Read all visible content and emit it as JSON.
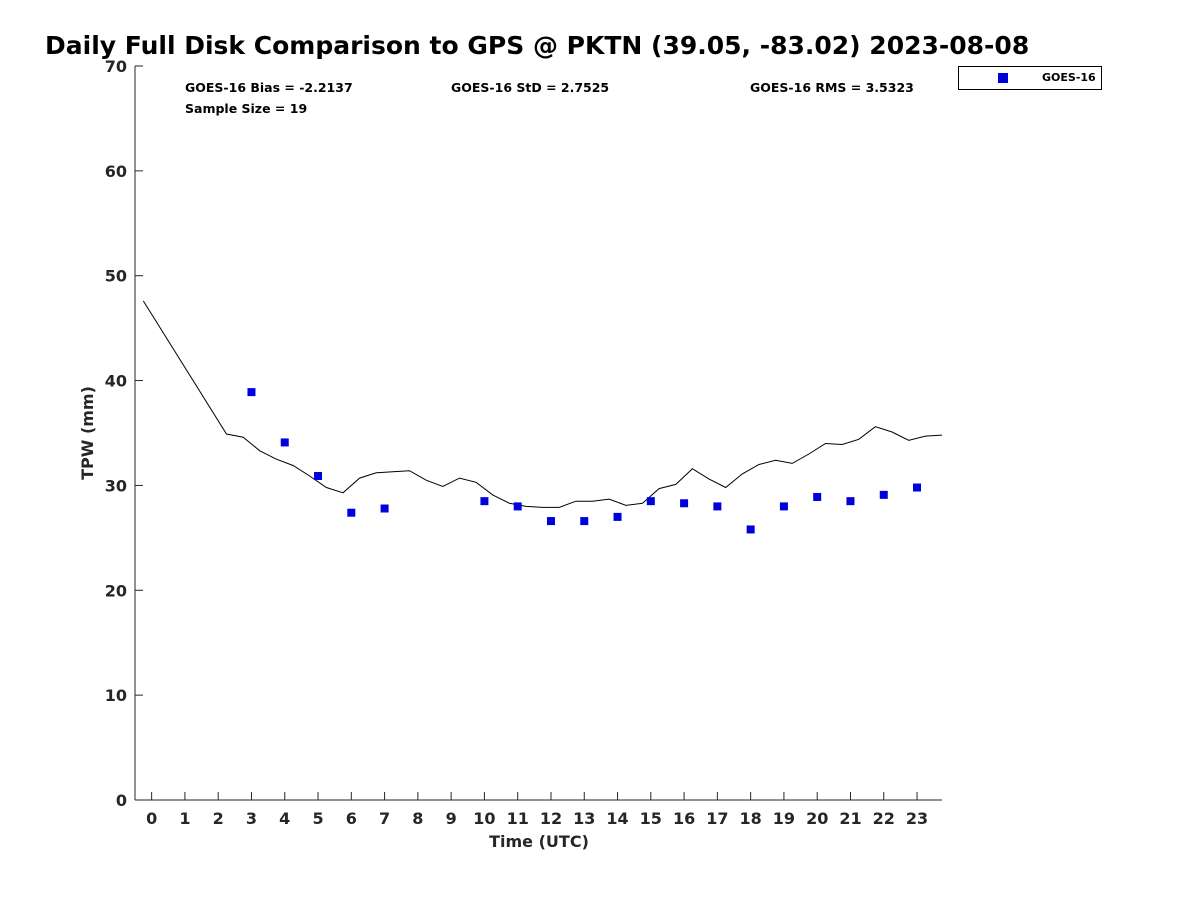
{
  "chart_data": {
    "type": "scatter",
    "title": "Daily Full Disk Comparison to GPS @ PKTN (39.05, -83.02) 2023-08-08",
    "xlabel": "Time (UTC)",
    "ylabel": "TPW (mm)",
    "xlim": [
      -0.5,
      23.75
    ],
    "ylim": [
      0,
      70
    ],
    "x_ticks": [
      0,
      1,
      2,
      3,
      4,
      5,
      6,
      7,
      8,
      9,
      10,
      11,
      12,
      13,
      14,
      15,
      16,
      17,
      18,
      19,
      20,
      21,
      22,
      23
    ],
    "x_tick_labels": [
      "0",
      "1",
      "2",
      "3",
      "4",
      "5",
      "6",
      "7",
      "8",
      "9",
      "10",
      "11",
      "12",
      "13",
      "14",
      "15",
      "16",
      "17",
      "18",
      "19",
      "20",
      "21",
      "22",
      "23"
    ],
    "y_ticks": [
      0,
      10,
      20,
      30,
      40,
      50,
      60,
      70
    ],
    "y_tick_labels": [
      "0",
      "10",
      "20",
      "30",
      "40",
      "50",
      "60",
      "70"
    ],
    "grid": false,
    "legend_position": "top-right-outside",
    "stats": {
      "bias": "GOES-16 Bias = -2.2137",
      "std": "GOES-16 StD = 2.7525",
      "rms": "GOES-16 RMS = 3.5323",
      "sample_size": "Sample Size = 19"
    },
    "series": [
      {
        "name": "GOES-16",
        "kind": "scatter",
        "marker": "square",
        "color": "#0000dd",
        "x": [
          3,
          4,
          5,
          6,
          7,
          10,
          11,
          12,
          13,
          14,
          15,
          16,
          17,
          18,
          19,
          20,
          21,
          22,
          23
        ],
        "y": [
          38.9,
          34.1,
          30.9,
          27.4,
          27.8,
          28.5,
          28.0,
          26.6,
          26.6,
          27.0,
          28.5,
          28.3,
          28.0,
          25.8,
          28.0,
          28.9,
          28.5,
          29.1,
          29.8
        ]
      },
      {
        "kind": "line",
        "color": "#000000",
        "x": [
          -0.25,
          2.25,
          2.75,
          3.25,
          3.75,
          4.25,
          4.75,
          5.25,
          5.75,
          6.25,
          6.75,
          7.25,
          7.75,
          8.25,
          8.75,
          9.25,
          9.75,
          10.25,
          10.75,
          11.25,
          11.75,
          12.25,
          12.75,
          13.25,
          13.75,
          14.25,
          14.75,
          15.25,
          15.75,
          16.25,
          16.75,
          17.25,
          17.75,
          18.25,
          18.75,
          19.25,
          19.75,
          20.25,
          20.75,
          21.25,
          21.75,
          22.25,
          22.75,
          23.25,
          23.75
        ],
        "y": [
          47.6,
          34.9,
          34.6,
          33.3,
          32.5,
          31.9,
          30.9,
          29.8,
          29.3,
          30.7,
          31.2,
          31.3,
          31.4,
          30.5,
          29.9,
          30.7,
          30.3,
          29.1,
          28.3,
          28.0,
          27.9,
          27.9,
          28.5,
          28.5,
          28.7,
          28.1,
          28.3,
          29.7,
          30.1,
          31.6,
          30.6,
          29.8,
          31.1,
          32.0,
          32.4,
          32.1,
          33.0,
          34.0,
          33.9,
          34.4,
          35.6,
          35.1,
          34.3,
          34.7,
          34.8
        ]
      }
    ]
  }
}
